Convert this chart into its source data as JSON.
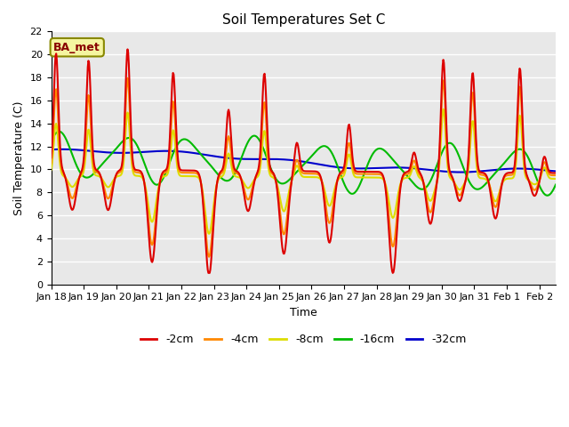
{
  "title": "Soil Temperatures Set C",
  "xlabel": "Time",
  "ylabel": "Soil Temperature (C)",
  "annotation": "BA_met",
  "ylim": [
    0,
    22
  ],
  "yticks": [
    0,
    2,
    4,
    6,
    8,
    10,
    12,
    14,
    16,
    18,
    20,
    22
  ],
  "series_colors": [
    "#dd0000",
    "#ff8800",
    "#dddd00",
    "#00bb00",
    "#0000cc"
  ],
  "series_labels": [
    "-2cm",
    "-4cm",
    "-8cm",
    "-16cm",
    "-32cm"
  ],
  "tick_labels": [
    "Jan 18",
    "Jan 19",
    "Jan 20",
    "Jan 21",
    "Jan 22",
    "Jan 23",
    "Jan 24",
    "Jan 25",
    "Jan 26",
    "Jan 27",
    "Jan 28",
    "Jan 29",
    "Jan 30",
    "Jan 31",
    "Feb 1",
    "Feb 2"
  ],
  "background_color": "#ffffff",
  "plot_bg_color": "#e8e8e8",
  "grid_color": "#ffffff",
  "annotation_fg": "#880000",
  "annotation_bg": "#f5f5a0",
  "annotation_edge": "#888800"
}
